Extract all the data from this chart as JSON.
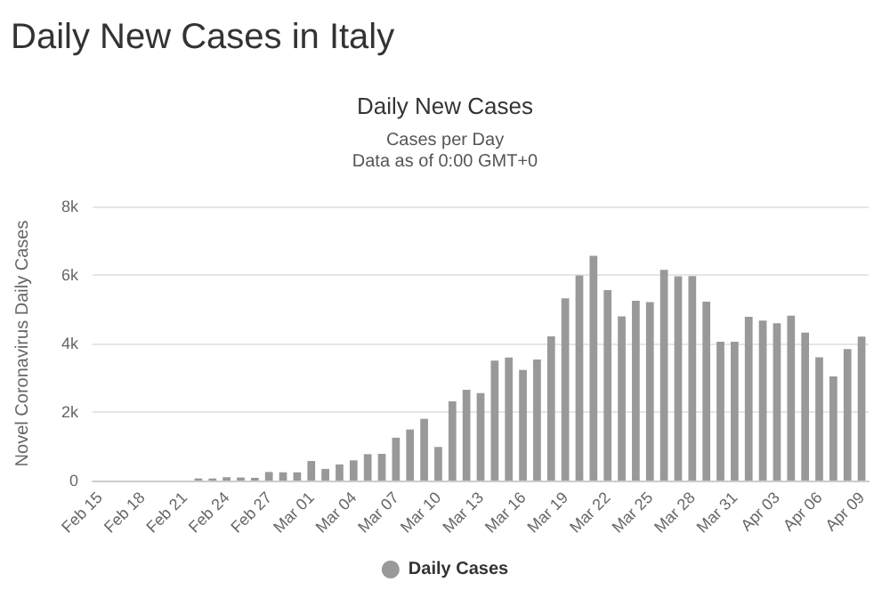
{
  "chart_data": {
    "type": "bar",
    "title": "Daily New Cases in Italy",
    "subtitle": "Daily New Cases",
    "annotations": [
      "Cases per Day",
      "Data as of 0:00 GMT+0"
    ],
    "ylabel": "Novel Coronavirus Daily Cases",
    "categories": [
      "Feb 15",
      null,
      null,
      "Feb 18",
      null,
      null,
      "Feb 21",
      null,
      null,
      "Feb 24",
      null,
      null,
      "Feb 27",
      null,
      null,
      "Mar 01",
      null,
      null,
      "Mar 04",
      null,
      null,
      "Mar 07",
      null,
      null,
      "Mar 10",
      null,
      null,
      "Mar 13",
      null,
      null,
      "Mar 16",
      null,
      null,
      "Mar 19",
      null,
      null,
      "Mar 22",
      null,
      null,
      "Mar 25",
      null,
      null,
      "Mar 28",
      null,
      null,
      "Mar 31",
      null,
      null,
      "Apr 03",
      null,
      null,
      "Apr 06",
      null,
      null,
      "Apr 09"
    ],
    "series": [
      {
        "name": "Daily Cases",
        "color": "#999999",
        "values": [
          0,
          0,
          0,
          0,
          0,
          0,
          0,
          60,
          60,
          100,
          90,
          80,
          250,
          240,
          240,
          570,
          340,
          470,
          590,
          770,
          780,
          1250,
          1490,
          1800,
          980,
          2310,
          2650,
          2550,
          3500,
          3590,
          3230,
          3530,
          4210,
          5320,
          5990,
          6560,
          5560,
          4790,
          5250,
          5210,
          6150,
          5960,
          5970,
          5220,
          4050,
          4050,
          4780,
          4670,
          4590,
          4810,
          4320,
          3600,
          3040,
          3840,
          4200
        ]
      }
    ],
    "ylim": [
      0,
      8000
    ],
    "yticks": [
      {
        "value": 0,
        "label": "0"
      },
      {
        "value": 2000,
        "label": "2k"
      },
      {
        "value": 4000,
        "label": "4k"
      },
      {
        "value": 6000,
        "label": "6k"
      },
      {
        "value": 8000,
        "label": "8k"
      }
    ],
    "grid": "y",
    "legend": "bottom"
  }
}
